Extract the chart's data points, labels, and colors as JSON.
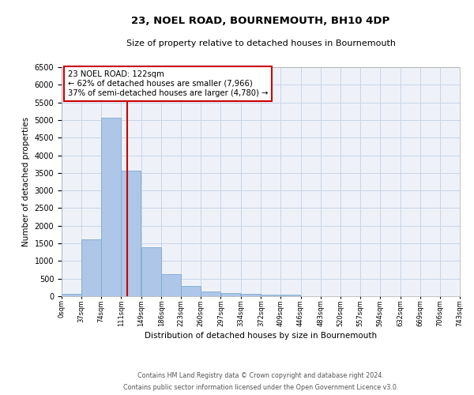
{
  "title1": "23, NOEL ROAD, BOURNEMOUTH, BH10 4DP",
  "title2": "Size of property relative to detached houses in Bournemouth",
  "xlabel": "Distribution of detached houses by size in Bournemouth",
  "ylabel": "Number of detached properties",
  "bar_color": "#aec6e8",
  "bar_edge_color": "#7aaad0",
  "grid_color": "#c8d4e8",
  "bin_width": 37,
  "bin_starts": [
    0,
    37,
    74,
    111,
    149,
    186,
    223,
    260,
    297,
    334,
    372,
    409,
    446,
    483,
    520,
    557,
    594,
    632,
    669,
    706
  ],
  "bin_labels": [
    "0sqm",
    "37sqm",
    "74sqm",
    "111sqm",
    "149sqm",
    "186sqm",
    "223sqm",
    "260sqm",
    "297sqm",
    "334sqm",
    "372sqm",
    "409sqm",
    "446sqm",
    "483sqm",
    "520sqm",
    "557sqm",
    "594sqm",
    "632sqm",
    "669sqm",
    "706sqm",
    "743sqm"
  ],
  "bar_heights": [
    75,
    1625,
    5075,
    3575,
    1400,
    625,
    290,
    140,
    100,
    60,
    50,
    50,
    0,
    0,
    0,
    0,
    0,
    0,
    0,
    0
  ],
  "property_size": 122,
  "vline_color": "#cc0000",
  "annotation_line1": "23 NOEL ROAD: 122sqm",
  "annotation_line2": "← 62% of detached houses are smaller (7,966)",
  "annotation_line3": "37% of semi-detached houses are larger (4,780) →",
  "annotation_box_color": "#cc0000",
  "ylim": [
    0,
    6500
  ],
  "yticks": [
    0,
    500,
    1000,
    1500,
    2000,
    2500,
    3000,
    3500,
    4000,
    4500,
    5000,
    5500,
    6000,
    6500
  ],
  "footer1": "Contains HM Land Registry data © Crown copyright and database right 2024.",
  "footer2": "Contains public sector information licensed under the Open Government Licence v3.0.",
  "bg_color": "#ffffff",
  "plot_bg_color": "#eef2f8"
}
